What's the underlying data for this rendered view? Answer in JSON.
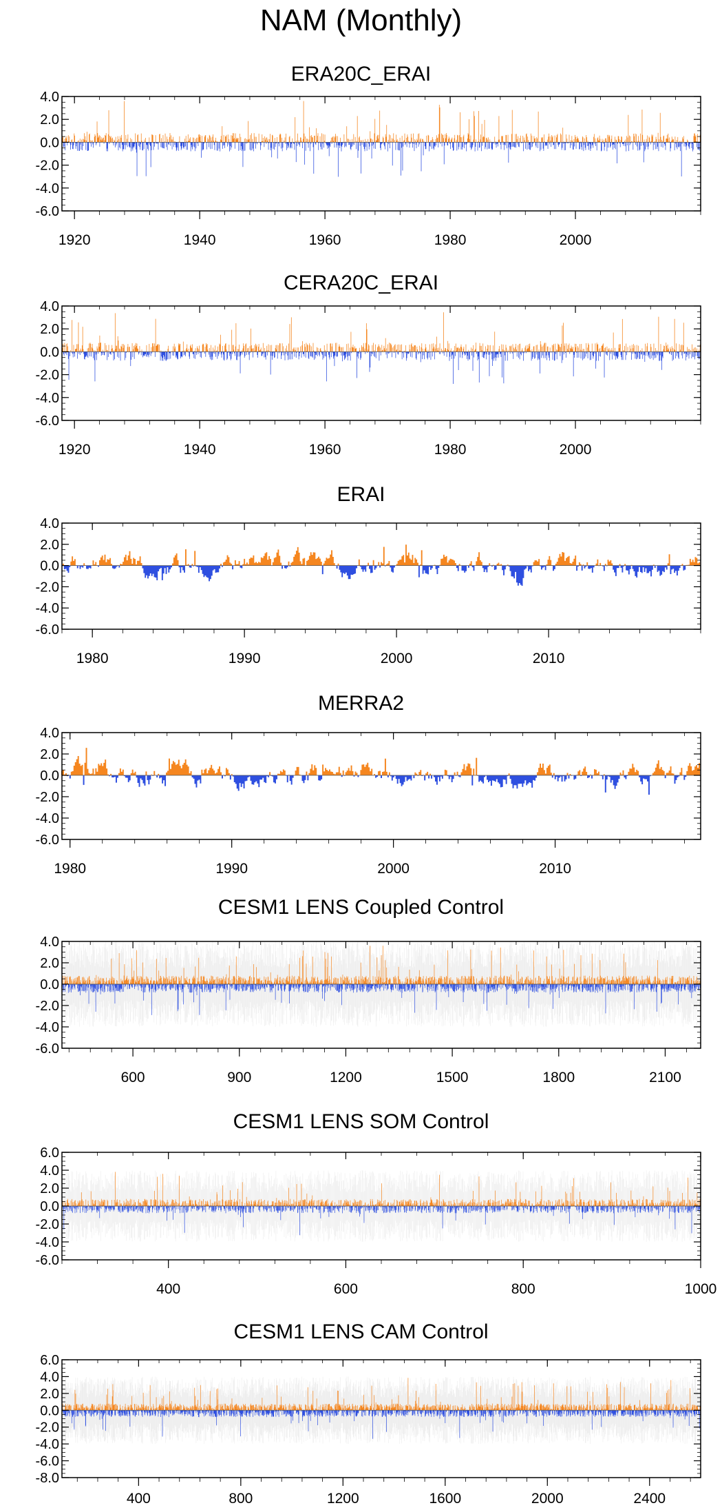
{
  "title": "NAM (Monthly)",
  "colors": {
    "positive": "#f5861f",
    "negative": "#2e4fe0",
    "ensemble": "#c8c8c8",
    "axis": "#000000"
  },
  "chart_data": [
    {
      "type": "bar",
      "title": "ERA20C_ERAI",
      "x_range": [
        1918,
        2020
      ],
      "ylim": [
        -6,
        4
      ],
      "yticks": [
        4,
        2,
        0,
        -2,
        -4,
        -6
      ],
      "ytick_labels": [
        "4.0",
        "2.0",
        "0.0",
        "-2.0",
        "-4.0",
        "-6.0"
      ],
      "xticks": [
        1920,
        1940,
        1960,
        1980,
        2000
      ],
      "xtick_labels": [
        "1920",
        "1940",
        "1960",
        "1980",
        "2000"
      ],
      "series_note": "monthly anomalies, orange = positive, blue = negative",
      "ensemble_shading": false
    },
    {
      "type": "bar",
      "title": "CERA20C_ERAI",
      "x_range": [
        1918,
        2020
      ],
      "ylim": [
        -6,
        4
      ],
      "yticks": [
        4,
        2,
        0,
        -2,
        -4,
        -6
      ],
      "ytick_labels": [
        "4.0",
        "2.0",
        "0.0",
        "-2.0",
        "-4.0",
        "-6.0"
      ],
      "xticks": [
        1920,
        1940,
        1960,
        1980,
        2000
      ],
      "xtick_labels": [
        "1920",
        "1940",
        "1960",
        "1980",
        "2000"
      ],
      "series_note": "monthly anomalies, orange = positive, blue = negative",
      "ensemble_shading": false
    },
    {
      "type": "bar",
      "title": "ERAI",
      "x_range": [
        1978,
        2020
      ],
      "ylim": [
        -6,
        4
      ],
      "yticks": [
        4,
        2,
        0,
        -2,
        -4,
        -6
      ],
      "ytick_labels": [
        "4.0",
        "2.0",
        "0.0",
        "-2.0",
        "-4.0",
        "-6.0"
      ],
      "xticks": [
        1980,
        1990,
        2000,
        2010
      ],
      "xtick_labels": [
        "1980",
        "1990",
        "2000",
        "2010"
      ],
      "series_note": "monthly anomalies, orange = positive, blue = negative",
      "ensemble_shading": false
    },
    {
      "type": "bar",
      "title": "MERRA2",
      "x_range": [
        1979.5,
        2019
      ],
      "ylim": [
        -6,
        4
      ],
      "yticks": [
        4,
        2,
        0,
        -2,
        -4,
        -6
      ],
      "ytick_labels": [
        "4.0",
        "2.0",
        "0.0",
        "-2.0",
        "-4.0",
        "-6.0"
      ],
      "xticks": [
        1980,
        1990,
        2000,
        2010
      ],
      "xtick_labels": [
        "1980",
        "1990",
        "2000",
        "2010"
      ],
      "series_note": "monthly anomalies, orange = positive, blue = negative",
      "ensemble_shading": false
    },
    {
      "type": "bar",
      "title": "CESM1 LENS Coupled Control",
      "x_range": [
        400,
        2200
      ],
      "ylim": [
        -6,
        4
      ],
      "yticks": [
        4,
        2,
        0,
        -2,
        -4,
        -6
      ],
      "ytick_labels": [
        "4.0",
        "2.0",
        "0.0",
        "-2.0",
        "-4.0",
        "-6.0"
      ],
      "xticks": [
        600,
        900,
        1200,
        1500,
        1800,
        2100
      ],
      "xtick_labels": [
        "600",
        "900",
        "1200",
        "1500",
        "1800",
        "2100"
      ],
      "series_note": "monthly anomalies with grey ensemble spread",
      "ensemble_shading": true
    },
    {
      "type": "bar",
      "title": "CESM1 LENS SOM Control",
      "x_range": [
        280,
        1000
      ],
      "ylim": [
        -6,
        6
      ],
      "yticks": [
        6,
        4,
        2,
        0,
        -2,
        -4,
        -6
      ],
      "ytick_labels": [
        "6.0",
        "4.0",
        "2.0",
        "0.0",
        "-2.0",
        "-4.0",
        "-6.0"
      ],
      "xticks": [
        400,
        600,
        800,
        1000
      ],
      "xtick_labels": [
        "400",
        "600",
        "800",
        "1000"
      ],
      "series_note": "monthly anomalies with grey ensemble spread",
      "ensemble_shading": true
    },
    {
      "type": "bar",
      "title": "CESM1 LENS CAM Control",
      "x_range": [
        100,
        2600
      ],
      "ylim": [
        -8,
        6
      ],
      "yticks": [
        6,
        4,
        2,
        0,
        -2,
        -4,
        -6,
        -8
      ],
      "ytick_labels": [
        "6.0",
        "4.0",
        "2.0",
        "0.0",
        "-2.0",
        "-4.0",
        "-6.0",
        "-8.0"
      ],
      "xticks": [
        400,
        800,
        1200,
        1600,
        2000,
        2400
      ],
      "xtick_labels": [
        "400",
        "800",
        "1200",
        "1600",
        "2000",
        "2400"
      ],
      "series_note": "monthly anomalies with grey ensemble spread",
      "ensemble_shading": true
    }
  ]
}
